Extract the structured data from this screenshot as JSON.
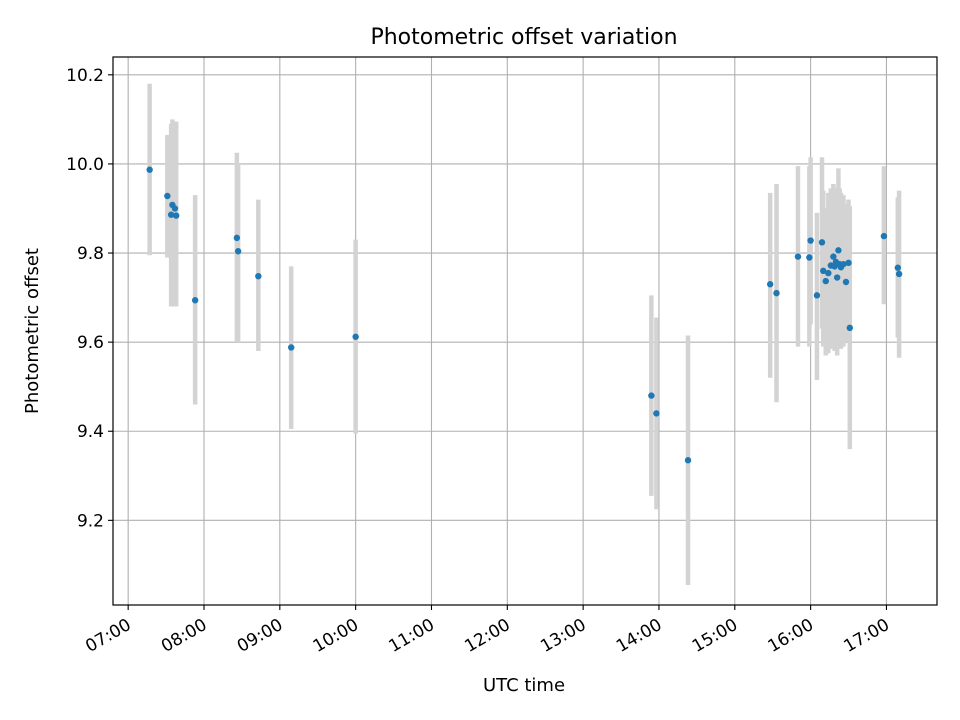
{
  "chart_data": {
    "type": "scatter",
    "title": "Photometric offset variation",
    "xlabel": "UTC time",
    "ylabel": "Photometric offset",
    "x_ticks": [
      "07:00",
      "08:00",
      "09:00",
      "10:00",
      "11:00",
      "12:00",
      "13:00",
      "14:00",
      "15:00",
      "16:00",
      "17:00"
    ],
    "y_ticks": [
      "9.2",
      "9.4",
      "9.6",
      "9.8",
      "10.0",
      "10.2"
    ],
    "xlim": [
      "06:48",
      "17:40"
    ],
    "ylim": [
      9.01,
      10.24
    ],
    "grid": true,
    "marker_color": "#1f77b4",
    "errorbar_color": "#d3d3d3",
    "points": [
      {
        "x": "07:17",
        "y": 9.987,
        "lo": 9.795,
        "hi": 10.18
      },
      {
        "x": "07:31",
        "y": 9.928,
        "lo": 9.79,
        "hi": 10.065
      },
      {
        "x": "07:34",
        "y": 9.886,
        "lo": 9.68,
        "hi": 10.09
      },
      {
        "x": "07:35",
        "y": 9.908,
        "lo": 9.68,
        "hi": 10.1
      },
      {
        "x": "07:37",
        "y": 9.9,
        "lo": 9.685,
        "hi": 10.095
      },
      {
        "x": "07:38",
        "y": 9.884,
        "lo": 9.68,
        "hi": 10.095
      },
      {
        "x": "07:53",
        "y": 9.694,
        "lo": 9.46,
        "hi": 9.93
      },
      {
        "x": "08:26",
        "y": 9.834,
        "lo": 9.6,
        "hi": 10.025
      },
      {
        "x": "08:27",
        "y": 9.804,
        "lo": 9.6,
        "hi": 10.0
      },
      {
        "x": "08:43",
        "y": 9.748,
        "lo": 9.58,
        "hi": 9.92
      },
      {
        "x": "09:09",
        "y": 9.588,
        "lo": 9.405,
        "hi": 9.77
      },
      {
        "x": "10:00",
        "y": 9.612,
        "lo": 9.395,
        "hi": 9.83
      },
      {
        "x": "13:54",
        "y": 9.48,
        "lo": 9.255,
        "hi": 9.705
      },
      {
        "x": "13:58",
        "y": 9.44,
        "lo": 9.225,
        "hi": 9.655
      },
      {
        "x": "14:23",
        "y": 9.335,
        "lo": 9.055,
        "hi": 9.615
      },
      {
        "x": "15:28",
        "y": 9.73,
        "lo": 9.52,
        "hi": 9.935
      },
      {
        "x": "15:33",
        "y": 9.71,
        "lo": 9.465,
        "hi": 9.955
      },
      {
        "x": "15:50",
        "y": 9.792,
        "lo": 9.59,
        "hi": 9.995
      },
      {
        "x": "15:59",
        "y": 9.79,
        "lo": 9.59,
        "hi": 9.995
      },
      {
        "x": "16:00",
        "y": 9.828,
        "lo": 9.64,
        "hi": 10.015
      },
      {
        "x": "16:05",
        "y": 9.705,
        "lo": 9.515,
        "hi": 9.89
      },
      {
        "x": "16:09",
        "y": 9.824,
        "lo": 9.63,
        "hi": 10.015
      },
      {
        "x": "16:10",
        "y": 9.76,
        "lo": 9.59,
        "hi": 9.94
      },
      {
        "x": "16:12",
        "y": 9.737,
        "lo": 9.57,
        "hi": 9.9
      },
      {
        "x": "16:14",
        "y": 9.755,
        "lo": 9.575,
        "hi": 9.935
      },
      {
        "x": "16:16",
        "y": 9.772,
        "lo": 9.585,
        "hi": 9.945
      },
      {
        "x": "16:18",
        "y": 9.792,
        "lo": 9.59,
        "hi": 9.955
      },
      {
        "x": "16:19",
        "y": 9.77,
        "lo": 9.58,
        "hi": 9.94
      },
      {
        "x": "16:20",
        "y": 9.78,
        "lo": 9.59,
        "hi": 9.945
      },
      {
        "x": "16:21",
        "y": 9.745,
        "lo": 9.57,
        "hi": 9.925
      },
      {
        "x": "16:22",
        "y": 9.806,
        "lo": 9.62,
        "hi": 9.99
      },
      {
        "x": "16:23",
        "y": 9.775,
        "lo": 9.59,
        "hi": 9.945
      },
      {
        "x": "16:24",
        "y": 9.768,
        "lo": 9.585,
        "hi": 9.935
      },
      {
        "x": "16:26",
        "y": 9.775,
        "lo": 9.59,
        "hi": 9.93
      },
      {
        "x": "16:28",
        "y": 9.735,
        "lo": 9.6,
        "hi": 9.91
      },
      {
        "x": "16:30",
        "y": 9.778,
        "lo": 9.62,
        "hi": 9.92
      },
      {
        "x": "16:31",
        "y": 9.632,
        "lo": 9.36,
        "hi": 9.905
      },
      {
        "x": "16:58",
        "y": 9.838,
        "lo": 9.685,
        "hi": 9.995
      },
      {
        "x": "17:09",
        "y": 9.767,
        "lo": 9.61,
        "hi": 9.925
      },
      {
        "x": "17:10",
        "y": 9.753,
        "lo": 9.565,
        "hi": 9.94
      }
    ]
  }
}
